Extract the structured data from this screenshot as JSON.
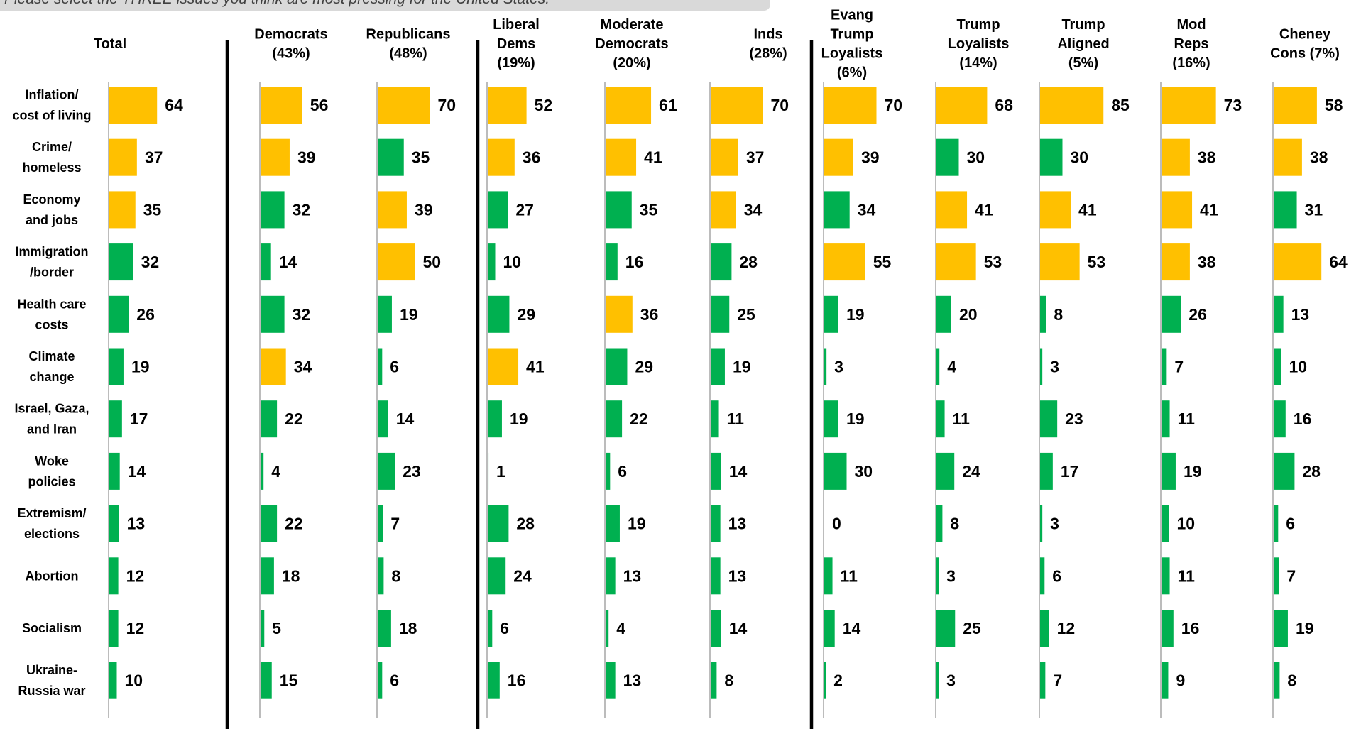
{
  "question": "Please select the THREE issues you think are most pressing for the United States.",
  "colors": {
    "top": "#ffc000",
    "other": "#00b050"
  },
  "chart_data": {
    "type": "bar",
    "orientation": "horizontal",
    "categories": [
      [
        "Inflation/",
        "cost of living"
      ],
      [
        "Crime/",
        "homeless"
      ],
      [
        "Economy",
        "and jobs"
      ],
      [
        "Immigration",
        "/border"
      ],
      [
        "Health care",
        "costs"
      ],
      [
        "Climate",
        "change"
      ],
      [
        "Israel, Gaza,",
        "and Iran"
      ],
      [
        "Woke",
        "policies"
      ],
      [
        "Extremism/",
        "elections"
      ],
      [
        "Abortion"
      ],
      [
        "Socialism"
      ],
      [
        "Ukraine-",
        "Russia war"
      ]
    ],
    "series": [
      {
        "name": [
          "Total"
        ],
        "values": [
          64,
          37,
          35,
          32,
          26,
          19,
          17,
          14,
          13,
          12,
          12,
          10
        ],
        "highlight": [
          true,
          true,
          true,
          false,
          false,
          false,
          false,
          false,
          false,
          false,
          false,
          false
        ]
      },
      {
        "name": [
          "Democrats",
          "(43%)"
        ],
        "values": [
          56,
          39,
          32,
          14,
          32,
          34,
          22,
          4,
          22,
          18,
          5,
          15
        ],
        "highlight": [
          true,
          true,
          false,
          false,
          false,
          true,
          false,
          false,
          false,
          false,
          false,
          false
        ]
      },
      {
        "name": [
          "Republicans",
          "(48%)"
        ],
        "values": [
          70,
          35,
          39,
          50,
          19,
          6,
          14,
          23,
          7,
          8,
          18,
          6
        ],
        "highlight": [
          true,
          false,
          true,
          true,
          false,
          false,
          false,
          false,
          false,
          false,
          false,
          false
        ]
      },
      {
        "name": [
          "Liberal",
          "Dems",
          "(19%)"
        ],
        "values": [
          52,
          36,
          27,
          10,
          29,
          41,
          19,
          1,
          28,
          24,
          6,
          16
        ],
        "highlight": [
          true,
          true,
          false,
          false,
          false,
          true,
          false,
          false,
          false,
          false,
          false,
          false
        ]
      },
      {
        "name": [
          "Moderate",
          "Democrats",
          "(20%)"
        ],
        "values": [
          61,
          41,
          35,
          16,
          36,
          29,
          22,
          6,
          19,
          13,
          4,
          13
        ],
        "highlight": [
          true,
          true,
          false,
          false,
          true,
          false,
          false,
          false,
          false,
          false,
          false,
          false
        ]
      },
      {
        "name": [
          "Inds",
          "(28%)"
        ],
        "values": [
          70,
          37,
          34,
          28,
          25,
          19,
          11,
          14,
          13,
          13,
          14,
          8
        ],
        "highlight": [
          true,
          true,
          true,
          false,
          false,
          false,
          false,
          false,
          false,
          false,
          false,
          false
        ]
      },
      {
        "name": [
          "Evang",
          "Trump",
          "Loyalists",
          "(6%)"
        ],
        "values": [
          70,
          39,
          34,
          55,
          19,
          3,
          19,
          30,
          0,
          11,
          14,
          2
        ],
        "highlight": [
          true,
          true,
          false,
          true,
          false,
          false,
          false,
          false,
          false,
          false,
          false,
          false
        ]
      },
      {
        "name": [
          "Trump",
          "Loyalists",
          "(14%)"
        ],
        "values": [
          68,
          30,
          41,
          53,
          20,
          4,
          11,
          24,
          8,
          3,
          25,
          3
        ],
        "highlight": [
          true,
          false,
          true,
          true,
          false,
          false,
          false,
          false,
          false,
          false,
          false,
          false
        ]
      },
      {
        "name": [
          "Trump",
          "Aligned",
          "(5%)"
        ],
        "values": [
          85,
          30,
          41,
          53,
          8,
          3,
          23,
          17,
          3,
          6,
          12,
          7
        ],
        "highlight": [
          true,
          false,
          true,
          true,
          false,
          false,
          false,
          false,
          false,
          false,
          false,
          false
        ]
      },
      {
        "name": [
          "Mod",
          "Reps",
          "(16%)"
        ],
        "values": [
          73,
          38,
          41,
          38,
          26,
          7,
          11,
          19,
          10,
          11,
          16,
          9
        ],
        "highlight": [
          true,
          true,
          true,
          true,
          false,
          false,
          false,
          false,
          false,
          false,
          false,
          false
        ]
      },
      {
        "name": [
          "Cheney",
          "Cons (7%)"
        ],
        "values": [
          58,
          38,
          31,
          64,
          13,
          10,
          16,
          28,
          6,
          7,
          19,
          8
        ],
        "highlight": [
          true,
          true,
          false,
          true,
          false,
          false,
          false,
          false,
          false,
          false,
          false,
          false
        ]
      }
    ],
    "xlim": [
      0,
      100
    ],
    "legend": "none",
    "grid": false
  }
}
